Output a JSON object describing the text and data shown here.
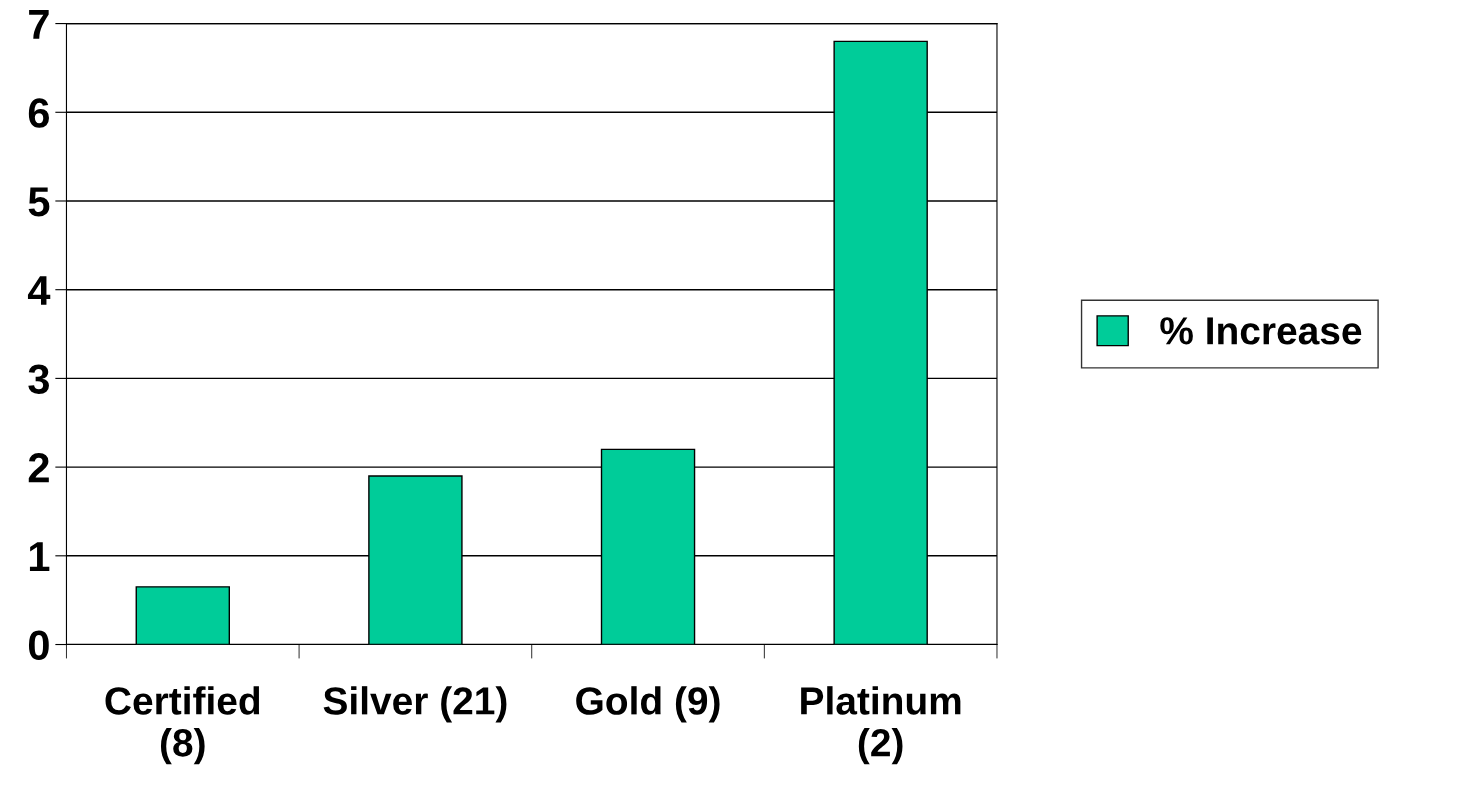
{
  "chart_data": {
    "type": "bar",
    "categories": [
      "Certified\n(8)",
      "Silver (21)",
      "Gold (9)",
      "Platinum\n(2)"
    ],
    "series": [
      {
        "name": "% Increase",
        "color": "#00cc99",
        "values": [
          0.65,
          1.9,
          2.2,
          6.8
        ]
      }
    ],
    "ylim": [
      0,
      7
    ],
    "yticks": [
      0,
      1,
      2,
      3,
      4,
      5,
      6,
      7
    ],
    "grid": "y",
    "legend": "right"
  }
}
